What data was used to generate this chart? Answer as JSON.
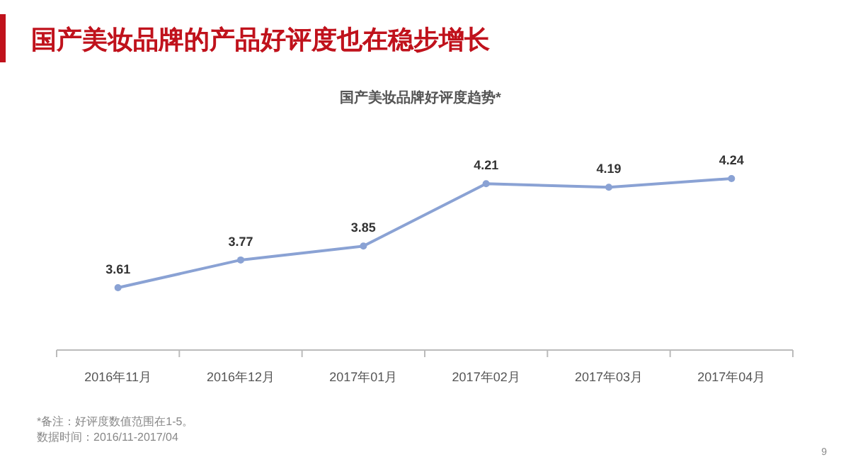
{
  "chart_data": {
    "type": "line",
    "title": "国产美妆品牌的产品好评度也在稳步增长",
    "subtitle": "国产美妆品牌好评度趋势*",
    "categories": [
      "2016年11月",
      "2016年12月",
      "2017年01月",
      "2017年02月",
      "2017年03月",
      "2017年04月"
    ],
    "series": [
      {
        "color": "#8aa2d4",
        "values": [
          3.61,
          3.77,
          3.85,
          4.21,
          4.19,
          4.24
        ]
      }
    ],
    "data_labels": true,
    "marker": "circle",
    "line_style": "solid",
    "annotations": [
      "*备注：好评度数值范围在1-5。",
      "数据时间：2016/11-2017/04",
      "9"
    ]
  }
}
